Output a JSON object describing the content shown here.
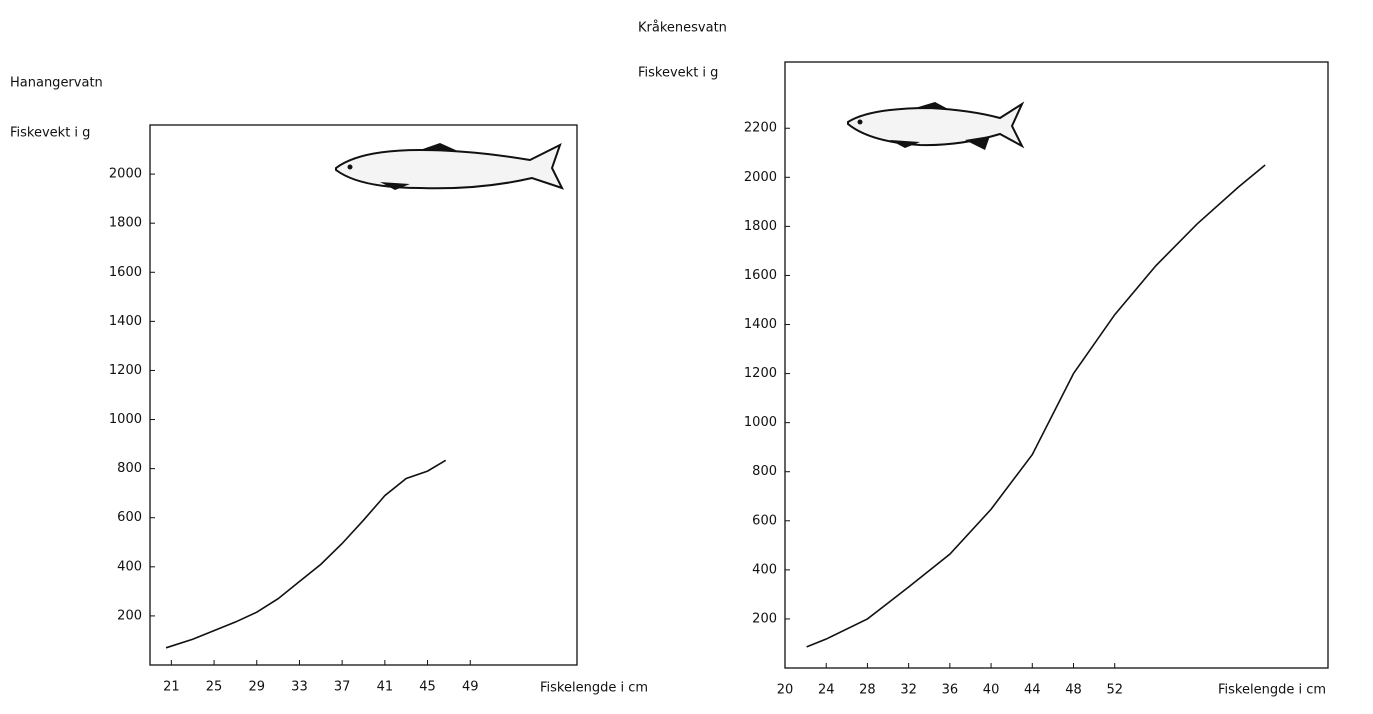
{
  "chart_data": [
    {
      "type": "line",
      "title": "Hanangervatn",
      "y_label": "Fiskevekt i g",
      "x_label": "Fiskelengde i cm",
      "x": [
        20.5,
        23,
        25,
        27,
        29,
        31,
        33,
        35,
        37,
        39,
        41,
        43,
        45,
        46.7
      ],
      "series": [
        {
          "name": "Hanangervatn",
          "color": "#111111",
          "values": [
            70,
            105,
            140,
            175,
            215,
            270,
            340,
            410,
            495,
            590,
            690,
            760,
            790,
            834
          ]
        }
      ],
      "xlim": [
        19,
        59
      ],
      "xticks": [
        21,
        25,
        29,
        33,
        37,
        41,
        45,
        49
      ],
      "ylim": [
        0,
        2200
      ],
      "yticks": [
        200,
        400,
        600,
        800,
        1000,
        1200,
        1400,
        1600,
        1800,
        2000
      ]
    },
    {
      "type": "line",
      "title": "Kråkenesvatn",
      "y_label": "Fiskevekt i g",
      "x_label": "Fiskelengde i cm",
      "x": [
        22.1,
        24,
        28,
        32,
        36,
        40,
        44,
        48,
        52,
        56,
        60,
        64,
        66.6
      ],
      "series": [
        {
          "name": "Kråkenesvatn",
          "color": "#111111",
          "values": [
            86,
            118,
            200,
            330,
            464,
            647,
            870,
            1200,
            1440,
            1640,
            1810,
            1960,
            2050
          ]
        }
      ],
      "xlim": [
        20,
        72.7
      ],
      "xticks": [
        20,
        24,
        28,
        32,
        36,
        40,
        44,
        48,
        52
      ],
      "ylim": [
        0,
        2470
      ],
      "yticks": [
        200,
        400,
        600,
        800,
        1000,
        1200,
        1400,
        1600,
        1800,
        2000,
        2200
      ]
    }
  ]
}
